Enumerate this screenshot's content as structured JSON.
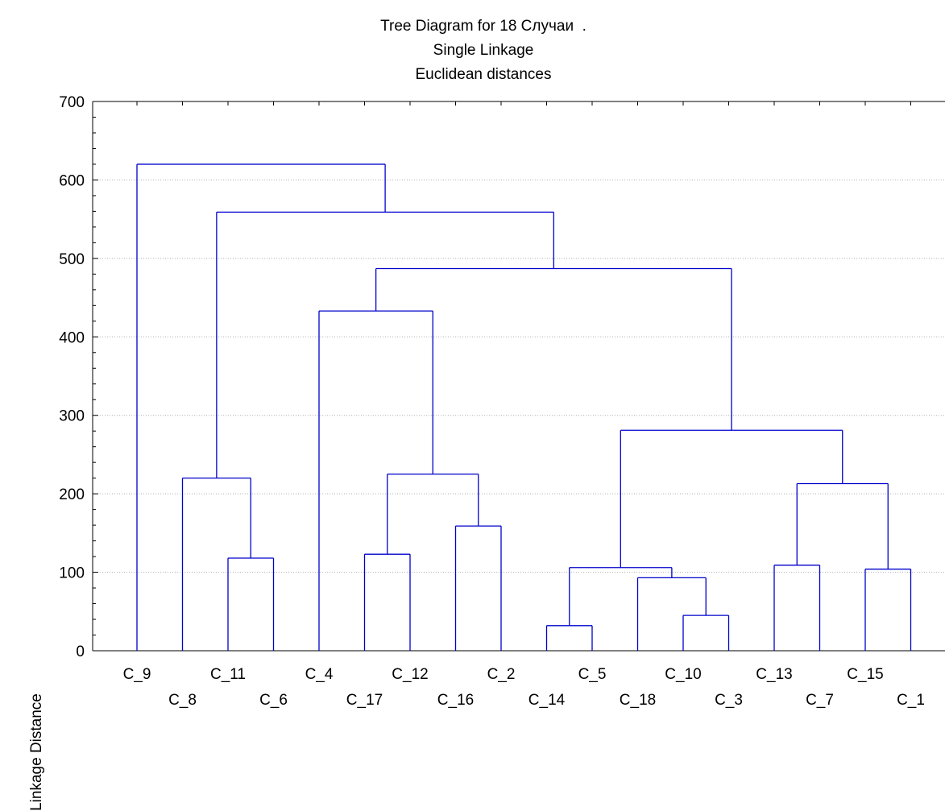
{
  "chart_data": {
    "type": "dendrogram",
    "title": "Tree Diagram for 18 Случаи  .",
    "subtitle_1": "Single Linkage",
    "subtitle_2": "Euclidean distances",
    "ylabel": "Linkage Distance",
    "ylim": [
      0,
      700
    ],
    "yticks": [
      0,
      100,
      200,
      300,
      400,
      500,
      600,
      700
    ],
    "leaves": [
      "C_9",
      "C_8",
      "C_11",
      "C_6",
      "C_4",
      "C_17",
      "C_12",
      "C_16",
      "C_2",
      "C_14",
      "C_5",
      "C_18",
      "C_10",
      "C_3",
      "C_13",
      "C_7",
      "C_15",
      "C_1"
    ],
    "merges": [
      {
        "left": "C_14",
        "right": "C_5",
        "height": 32
      },
      {
        "left": "C_3",
        "right": "C_10",
        "height": 45
      },
      {
        "left": "C_18",
        "right": "C_10+C_3",
        "height": 93
      },
      {
        "left": "C_1",
        "right": "C_15",
        "height": 104
      },
      {
        "left": "C_14+C_5",
        "right": "C_18+C_10+C_3",
        "height": 106
      },
      {
        "left": "C_13",
        "right": "C_7",
        "height": 109
      },
      {
        "left": "C_11",
        "right": "C_6",
        "height": 118
      },
      {
        "left": "C_17",
        "right": "C_12",
        "height": 123
      },
      {
        "left": "C_16",
        "right": "C_2",
        "height": 159
      },
      {
        "left": "C_13+C_7",
        "right": "C_15+C_1",
        "height": 213
      },
      {
        "left": "C_8",
        "right": "C_11+C_6",
        "height": 220
      },
      {
        "left": "C_17+C_12",
        "right": "C_16+C_2",
        "height": 225
      },
      {
        "left": "C_14+C_5+C_18+C_10+C_3",
        "right": "C_13+C_7+C_15+C_1",
        "height": 281
      },
      {
        "left": "C_4",
        "right": "C_17+C_12+C_16+C_2",
        "height": 433
      },
      {
        "left": "C_4 cluster",
        "right": "C_5 cluster",
        "height": 487
      },
      {
        "left": "C_8 cluster",
        "right": "C_4+C_5 clusters",
        "height": 559
      },
      {
        "left": "C_9",
        "right": "all others",
        "height": 620
      }
    ],
    "line_color": "#0000cc",
    "grid": true
  }
}
